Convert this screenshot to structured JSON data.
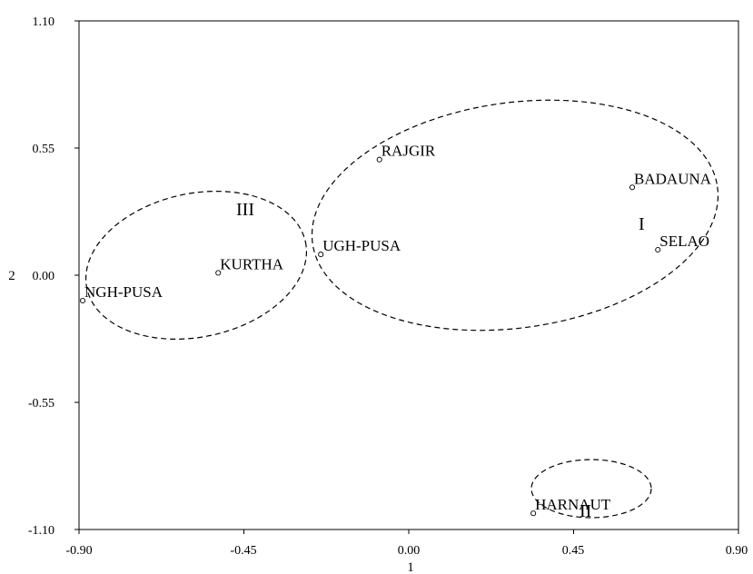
{
  "chart_data": {
    "type": "scatter",
    "title": "",
    "xlabel": "1",
    "ylabel": "2",
    "xlim": [
      -0.9,
      0.9
    ],
    "ylim": [
      -1.1,
      1.1
    ],
    "xticks": [
      "-0.90",
      "-0.45",
      "0.00",
      "0.45",
      "0.90"
    ],
    "yticks": [
      "1.10",
      "0.55",
      "0.00",
      "-0.55",
      "-1.10"
    ],
    "grid": false,
    "points": [
      {
        "label": "RAJGIR",
        "x": -0.08,
        "y": 0.5
      },
      {
        "label": "BADAUNA",
        "x": 0.61,
        "y": 0.38
      },
      {
        "label": "SELAO",
        "x": 0.68,
        "y": 0.11
      },
      {
        "label": "UGH-PUSA",
        "x": -0.24,
        "y": 0.09
      },
      {
        "label": "KURTHA",
        "x": -0.52,
        "y": 0.01
      },
      {
        "label": "NGH-PUSA",
        "x": -0.89,
        "y": -0.11
      },
      {
        "label": "HARNAUT",
        "x": 0.34,
        "y": -1.03
      }
    ],
    "clusters": [
      {
        "label": "I",
        "members": [
          "RAJGIR",
          "BADAUNA",
          "SELAO",
          "UGH-PUSA"
        ]
      },
      {
        "label": "II",
        "members": [
          "HARNAUT"
        ]
      },
      {
        "label": "III",
        "members": [
          "KURTHA",
          "NGH-PUSA"
        ]
      }
    ]
  }
}
